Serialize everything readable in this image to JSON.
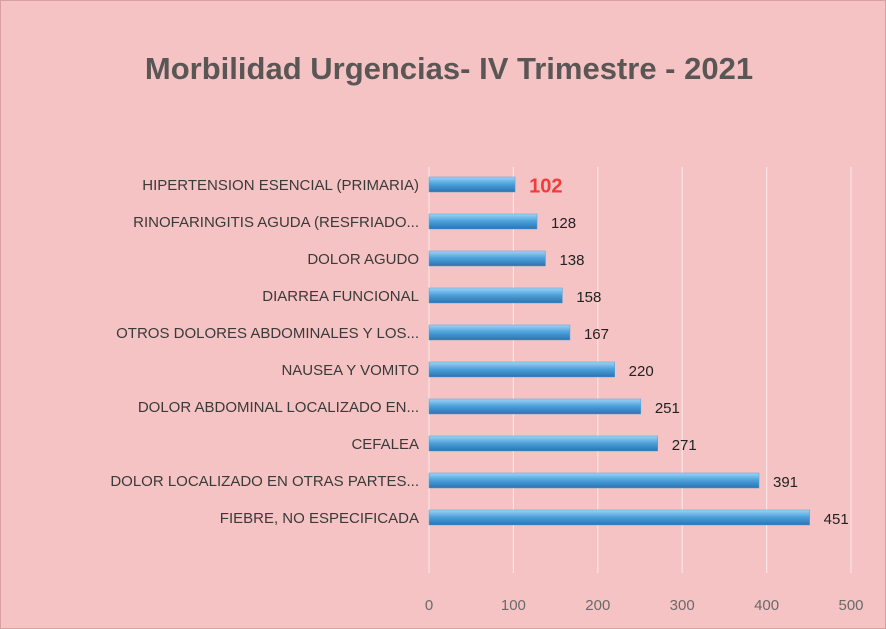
{
  "chart_data": {
    "type": "hbar",
    "title": "Morbilidad Urgencias- IV Trimestre - 2021",
    "categories": [
      "HIPERTENSION ESENCIAL (PRIMARIA)",
      "RINOFARINGITIS AGUDA (RESFRIADO...",
      "DOLOR AGUDO",
      "DIARREA FUNCIONAL",
      "OTROS DOLORES ABDOMINALES Y LOS...",
      "NAUSEA Y VOMITO",
      "DOLOR ABDOMINAL LOCALIZADO EN...",
      "CEFALEA",
      "DOLOR LOCALIZADO EN OTRAS PARTES...",
      "FIEBRE, NO ESPECIFICADA"
    ],
    "values": [
      102,
      128,
      138,
      158,
      167,
      220,
      251,
      271,
      391,
      451
    ],
    "color": "#4fa3dc",
    "highlight_index": 0,
    "highlight_color": "#f03c3c",
    "xlim": [
      0,
      500
    ],
    "xticks": [
      0,
      100,
      200,
      300,
      400,
      500
    ],
    "grid": true
  }
}
